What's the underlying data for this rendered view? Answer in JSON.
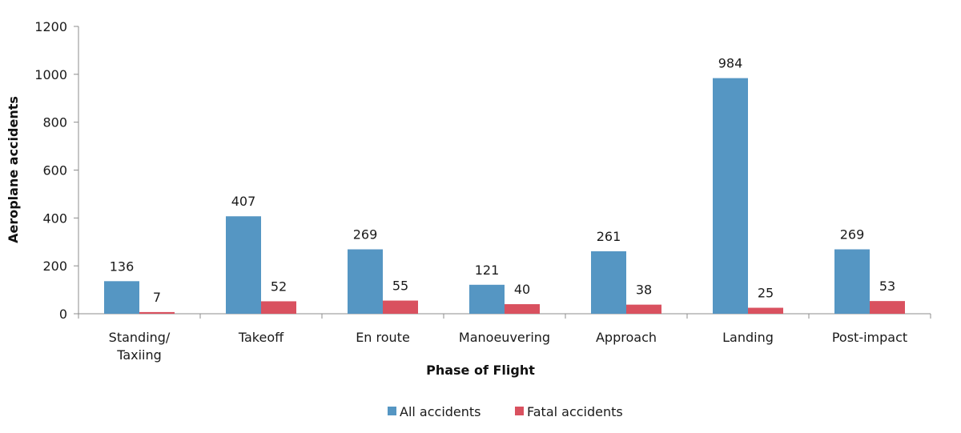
{
  "chart_data": {
    "type": "bar",
    "xlabel": "Phase of Flight",
    "ylabel": "Aeroplane accidents",
    "ylim": [
      0,
      1200
    ],
    "yticks": [
      0,
      200,
      400,
      600,
      800,
      1000,
      1200
    ],
    "categories": [
      [
        "Standing/",
        "Taxiing"
      ],
      [
        "Takeoff"
      ],
      [
        "En route"
      ],
      [
        "Manoeuvering"
      ],
      [
        "Approach"
      ],
      [
        "Landing"
      ],
      [
        "Post-impact"
      ]
    ],
    "series": [
      {
        "name": "All accidents",
        "color": "#5596c3",
        "values": [
          136,
          407,
          269,
          121,
          261,
          984,
          269
        ]
      },
      {
        "name": "Fatal accidents",
        "color": "#d9515f",
        "values": [
          7,
          52,
          55,
          40,
          38,
          25,
          53
        ]
      }
    ],
    "grid": false,
    "legend": "bottom-center",
    "data_labels": true
  }
}
